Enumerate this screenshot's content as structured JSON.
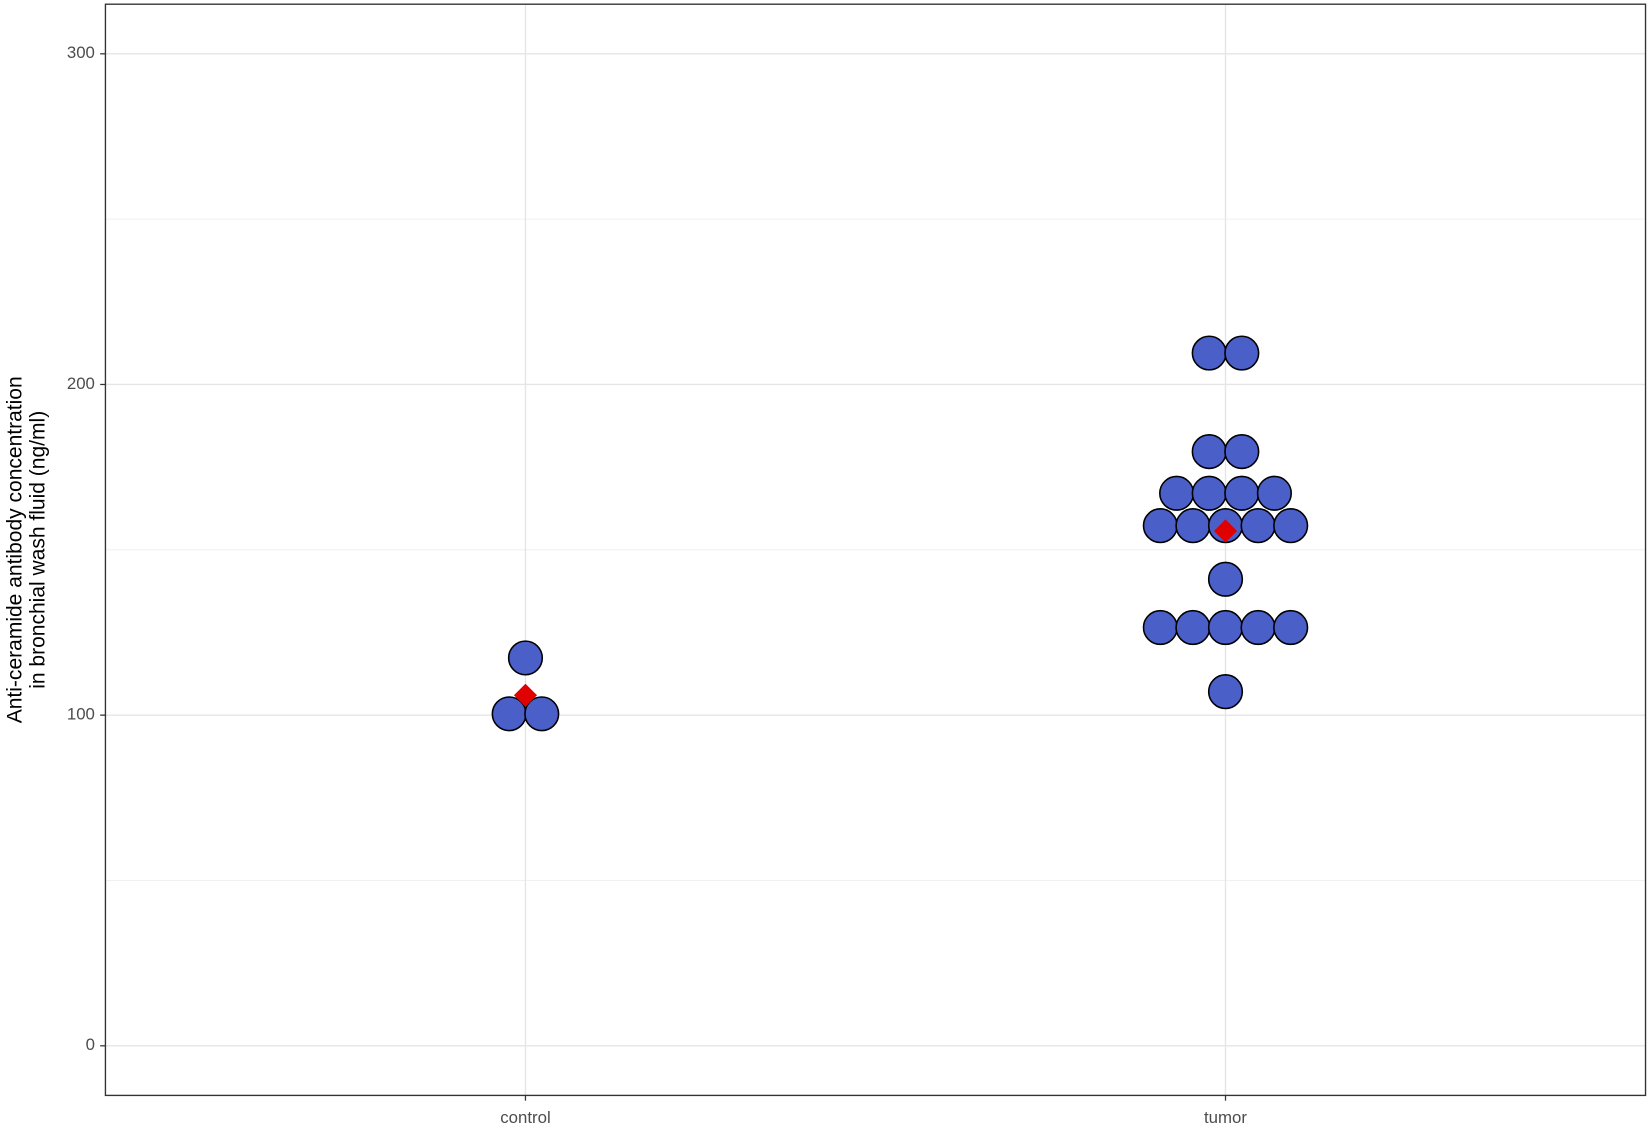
{
  "chart_data": {
    "type": "dotplot",
    "y_label": [
      "Anti-ceramide antibody concentration",
      "in bronchial wash fluid (ng/ml)"
    ],
    "categories": [
      "control",
      "tumor"
    ],
    "values": [
      [
        117.3,
        100.4,
        100.4
      ],
      [
        209.5,
        209.5,
        179.7,
        179.7,
        167.1,
        167.1,
        167.1,
        167.1,
        157.3,
        157.3,
        157.3,
        157.3,
        157.3,
        141.1,
        126.5,
        126.5,
        126.5,
        126.5,
        126.5,
        107.1
      ]
    ],
    "means": [
      106.0,
      155.7
    ],
    "color": "#4b5fc9",
    "mean_color": "#e00000",
    "ylim": [
      -15,
      315
    ],
    "yticks": [
      0,
      100,
      200,
      300
    ],
    "grid": true,
    "minor_grid": true
  }
}
